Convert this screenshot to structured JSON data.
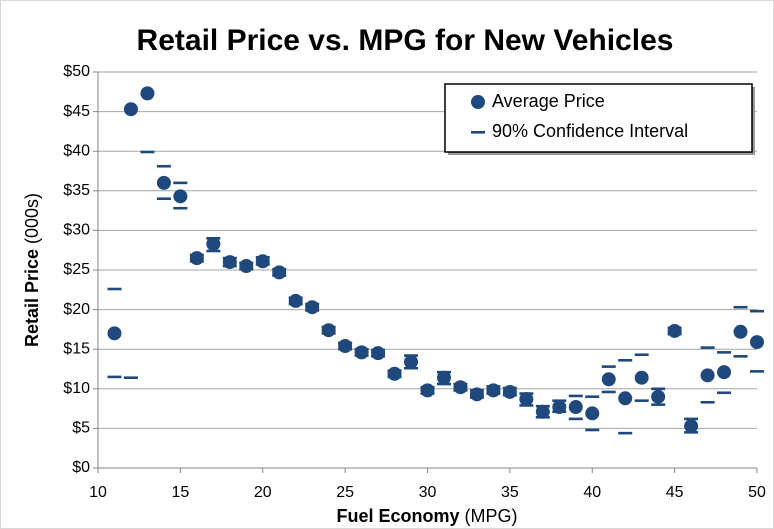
{
  "chart_data": {
    "type": "scatter",
    "title": "Retail Price vs. MPG for New Vehicles",
    "xlabel": "Fuel Economy",
    "xlabel_unit": "(MPG)",
    "ylabel": "Retail Price",
    "ylabel_unit": "(000s)",
    "x": [
      11,
      12,
      13,
      14,
      15,
      16,
      17,
      18,
      19,
      20,
      21,
      22,
      23,
      24,
      25,
      26,
      27,
      28,
      29,
      30,
      31,
      32,
      33,
      34,
      35,
      36,
      37,
      38,
      39,
      40,
      41,
      42,
      43,
      44,
      45,
      46,
      47,
      48,
      49,
      50
    ],
    "series": [
      {
        "name": "Average Price",
        "color": "#1f497d",
        "values": [
          17.0,
          45.3,
          47.3,
          36.0,
          34.3,
          26.5,
          28.3,
          26.0,
          25.5,
          26.1,
          24.7,
          21.1,
          20.3,
          17.4,
          15.4,
          14.6,
          14.5,
          11.9,
          13.4,
          9.8,
          11.4,
          10.2,
          9.3,
          9.8,
          9.6,
          8.7,
          7.1,
          7.7,
          7.7,
          6.9,
          11.2,
          8.8,
          11.4,
          9.0,
          17.3,
          5.3,
          11.7,
          12.1,
          17.2,
          15.9
        ]
      },
      {
        "name": "90% Confidence Interval",
        "color": "#1f497d",
        "upper": [
          22.6,
          null,
          null,
          38.1,
          36.0,
          26.9,
          29.0,
          26.5,
          25.9,
          26.6,
          25.1,
          21.5,
          20.7,
          17.8,
          15.8,
          15.0,
          14.9,
          12.3,
          14.2,
          10.2,
          12.1,
          10.6,
          9.8,
          10.3,
          10.1,
          9.4,
          7.8,
          8.5,
          9.1,
          9.0,
          12.8,
          13.6,
          14.3,
          10.0,
          17.7,
          6.2,
          15.2,
          14.6,
          20.3,
          19.8
        ],
        "lower": [
          11.5,
          11.4,
          39.9,
          34.0,
          32.8,
          26.1,
          27.4,
          25.5,
          25.1,
          25.7,
          24.3,
          20.7,
          19.9,
          17.0,
          15.0,
          14.2,
          14.1,
          11.5,
          12.6,
          9.4,
          10.6,
          9.8,
          8.9,
          9.4,
          9.2,
          7.9,
          6.4,
          7.1,
          6.2,
          4.8,
          9.6,
          4.4,
          8.5,
          8.0,
          16.9,
          4.5,
          8.3,
          9.5,
          14.1,
          12.2
        ]
      }
    ],
    "xlim": [
      10,
      50
    ],
    "xticks": [
      10,
      15,
      20,
      25,
      30,
      35,
      40,
      45,
      50
    ],
    "ylim": [
      0,
      50
    ],
    "yticks": [
      {
        "value": 0,
        "label": "$0"
      },
      {
        "value": 5,
        "label": "$5"
      },
      {
        "value": 10,
        "label": "$10"
      },
      {
        "value": 15,
        "label": "$15"
      },
      {
        "value": 20,
        "label": "$20"
      },
      {
        "value": 25,
        "label": "$25"
      },
      {
        "value": 30,
        "label": "$30"
      },
      {
        "value": 35,
        "label": "$35"
      },
      {
        "value": 40,
        "label": "$40"
      },
      {
        "value": 45,
        "label": "$45"
      },
      {
        "value": 50,
        "label": "$50"
      }
    ],
    "grid": true,
    "legend": "top-right"
  }
}
